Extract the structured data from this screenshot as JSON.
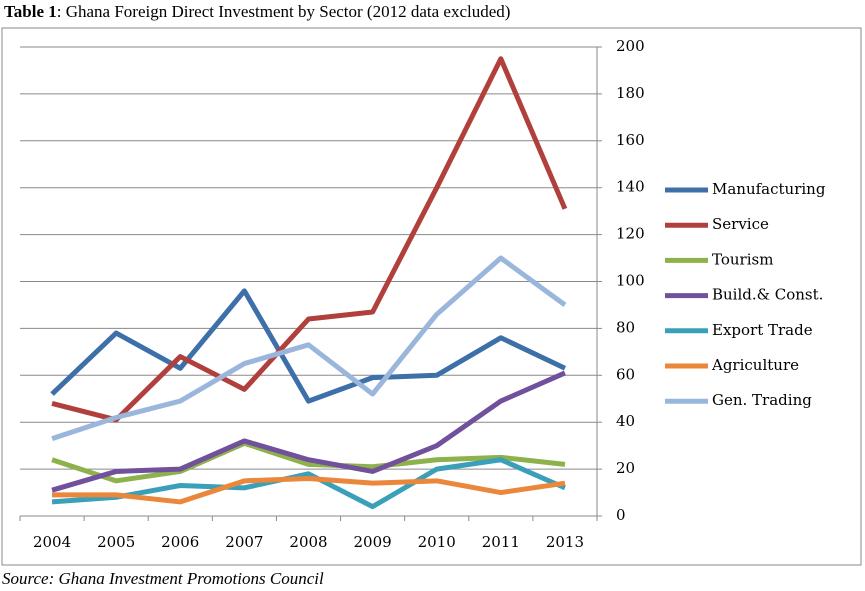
{
  "chart_data": {
    "type": "line",
    "title_label": "Table 1",
    "title": ": Ghana Foreign Direct Investment by Sector (2012 data excluded)",
    "source": "Source: Ghana Investment Promotions Council",
    "categories": [
      "2004",
      "2005",
      "2006",
      "2007",
      "2008",
      "2009",
      "2010",
      "2011",
      "2013"
    ],
    "series": [
      {
        "name": "Manufacturing",
        "color": "#3d6fa9",
        "values": [
          52,
          78,
          63,
          96,
          49,
          59,
          60,
          76,
          63
        ]
      },
      {
        "name": "Service",
        "color": "#b1403c",
        "values": [
          48,
          41,
          68,
          54,
          84,
          87,
          140,
          195,
          131
        ]
      },
      {
        "name": "Tourism",
        "color": "#8db24c",
        "values": [
          24,
          15,
          19,
          31,
          22,
          21,
          24,
          25,
          22
        ]
      },
      {
        "name": "Build.& Const.",
        "color": "#71519b",
        "values": [
          11,
          19,
          20,
          32,
          24,
          19,
          30,
          49,
          61
        ]
      },
      {
        "name": "Export Trade",
        "color": "#3aa0b9",
        "values": [
          6,
          8,
          13,
          12,
          18,
          4,
          20,
          24,
          12
        ]
      },
      {
        "name": "Agriculture",
        "color": "#ea873a",
        "values": [
          9,
          9,
          6,
          15,
          16,
          14,
          15,
          10,
          14
        ]
      },
      {
        "name": "Gen. Trading",
        "color": "#9bb6dd",
        "values": [
          33,
          42,
          49,
          65,
          73,
          52,
          86,
          110,
          90
        ]
      }
    ],
    "ylim": [
      0,
      200
    ],
    "yticks": [
      0,
      20,
      40,
      60,
      80,
      100,
      120,
      140,
      160,
      180,
      200
    ],
    "grid": true,
    "legend": "right"
  }
}
